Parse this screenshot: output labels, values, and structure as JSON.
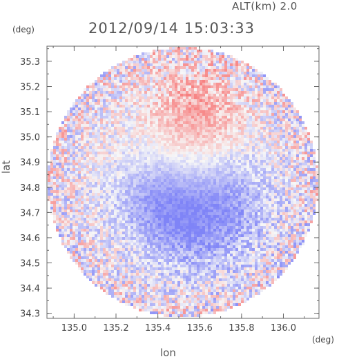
{
  "header": {
    "altitude_label": "ALT(km) 2.0",
    "timestamp": "2012/09/14 15:03:33",
    "y_unit": "(deg)",
    "x_unit": "(deg)"
  },
  "chart_data": {
    "type": "heatmap",
    "title": "2012/09/14 15:03:33",
    "xlabel": "lon",
    "ylabel": "lat",
    "xlim": [
      134.87,
      136.17
    ],
    "ylim": [
      34.28,
      35.36
    ],
    "xticks": [
      "135.0",
      "135.2",
      "135.4",
      "135.6",
      "135.8",
      "136.0"
    ],
    "yticks": [
      "34.3",
      "34.4",
      "34.5",
      "34.6",
      "34.7",
      "34.8",
      "34.9",
      "35.0",
      "35.1",
      "35.2",
      "35.3"
    ],
    "domain": {
      "shape": "circle",
      "center_lon": 135.52,
      "center_lat": 34.82,
      "radius_lat": 0.535
    },
    "colors": {
      "positive": "#f08080",
      "negative": "#8080f0",
      "neutral": "#f6f6f8"
    },
    "grid": false,
    "features": [
      {
        "name": "positive region",
        "lon": 135.56,
        "lat": 35.13,
        "value": 0.45
      },
      {
        "name": "positive region",
        "lon": 135.62,
        "lat": 35.03,
        "value": 0.3
      },
      {
        "name": "negative region",
        "lon": 135.38,
        "lat": 34.76,
        "value": -0.6
      },
      {
        "name": "negative region",
        "lon": 135.53,
        "lat": 34.62,
        "value": -0.55
      },
      {
        "name": "negative region",
        "lon": 135.75,
        "lat": 34.67,
        "value": -0.45
      },
      {
        "name": "negative region",
        "lon": 135.72,
        "lat": 34.85,
        "value": -0.35
      }
    ]
  }
}
